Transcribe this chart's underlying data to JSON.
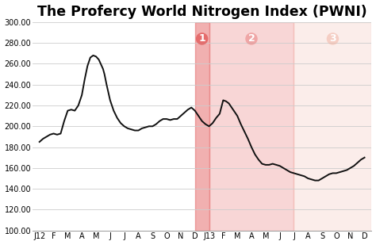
{
  "title": "The Profercy World Nitrogen Index (PWNI)",
  "ylim": [
    100,
    300
  ],
  "yticks": [
    100,
    120,
    140,
    160,
    180,
    200,
    220,
    240,
    260,
    280,
    300
  ],
  "xlabel_labels": [
    "J12",
    "F",
    "M",
    "A",
    "M",
    "J",
    "J",
    "A",
    "S",
    "O",
    "N",
    "D",
    "J13",
    "F",
    "M",
    "A",
    "M",
    "J",
    "J",
    "A",
    "S",
    "O",
    "N",
    "D"
  ],
  "background_color": "#ffffff",
  "line_color": "#111111",
  "shade1_color": "#e05050",
  "shade2_color": "#e87878",
  "shade3_color": "#f0b0a0",
  "shade1_alpha": 0.45,
  "shade2_alpha": 0.3,
  "shade3_alpha": 0.22,
  "grid_color": "#cccccc",
  "title_fontsize": 12.5,
  "tick_fontsize": 7,
  "label_fontsize": 9,
  "pwni_x": [
    0.0,
    0.25,
    0.5,
    0.75,
    1.0,
    1.25,
    1.5,
    1.75,
    2.0,
    2.25,
    2.5,
    2.75,
    3.0,
    3.2,
    3.4,
    3.6,
    3.8,
    4.0,
    4.2,
    4.4,
    4.5,
    4.6,
    4.75,
    5.0,
    5.25,
    5.5,
    5.75,
    6.0,
    6.25,
    6.5,
    6.75,
    7.0,
    7.25,
    7.5,
    7.75,
    8.0,
    8.25,
    8.5,
    8.75,
    9.0,
    9.25,
    9.5,
    9.75,
    10.0,
    10.25,
    10.5,
    10.75,
    11.0,
    11.25,
    11.5,
    11.75,
    12.0,
    12.25,
    12.5,
    12.75,
    13.0,
    13.2,
    13.4,
    13.6,
    13.8,
    14.0,
    14.25,
    14.5,
    14.75,
    15.0,
    15.25,
    15.5,
    15.75,
    16.0,
    16.25,
    16.5,
    16.75,
    17.0,
    17.25,
    17.5,
    17.75,
    18.0,
    18.25,
    18.5,
    18.75,
    19.0,
    19.25,
    19.5,
    19.75,
    20.0,
    20.25,
    20.5,
    20.75,
    21.0,
    21.25,
    21.5,
    21.75,
    22.0,
    22.25,
    22.5,
    22.75,
    23.0
  ],
  "pwni_y": [
    185,
    188,
    190,
    192,
    193,
    192,
    193,
    205,
    215,
    216,
    215,
    220,
    230,
    245,
    258,
    266,
    268,
    267,
    264,
    258,
    255,
    250,
    240,
    225,
    215,
    208,
    203,
    200,
    198,
    197,
    196,
    196,
    198,
    199,
    200,
    200,
    202,
    205,
    207,
    207,
    206,
    207,
    207,
    210,
    213,
    216,
    218,
    215,
    210,
    205,
    202,
    200,
    203,
    208,
    212,
    225,
    224,
    222,
    218,
    214,
    210,
    202,
    195,
    188,
    180,
    173,
    168,
    164,
    163,
    163,
    164,
    163,
    162,
    160,
    158,
    156,
    155,
    154,
    153,
    152,
    150,
    149,
    148,
    148,
    150,
    152,
    154,
    155,
    155,
    156,
    157,
    158,
    160,
    162,
    165,
    168,
    170
  ]
}
